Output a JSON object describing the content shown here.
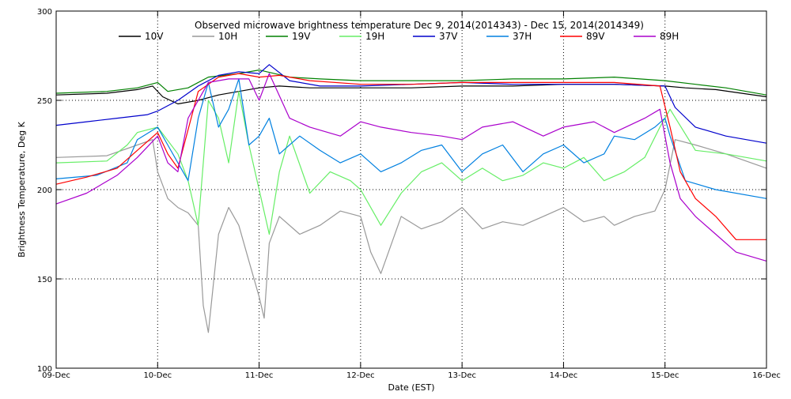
{
  "chart_data": {
    "type": "line",
    "title": "Observed microwave brightness temperature Dec  9, 2014(2014343) - Dec 15, 2014(2014349)",
    "xlabel": "Date (EST)",
    "ylabel": "Brightness Temperature, Deg K",
    "x_unit": "days since 09-Dec-2014 00:00 EST",
    "xlim": [
      0,
      7
    ],
    "ylim": [
      100,
      300
    ],
    "y_ticks": [
      100,
      150,
      200,
      250,
      300
    ],
    "x_ticks": [
      {
        "x": 0,
        "label": "09-Dec"
      },
      {
        "x": 1,
        "label": "10-Dec"
      },
      {
        "x": 2,
        "label": "11-Dec"
      },
      {
        "x": 3,
        "label": "12-Dec"
      },
      {
        "x": 4,
        "label": "13-Dec"
      },
      {
        "x": 5,
        "label": "14-Dec"
      },
      {
        "x": 6,
        "label": "15-Dec"
      },
      {
        "x": 7,
        "label": "16-Dec"
      }
    ],
    "grid": true,
    "legend_position": "top",
    "series": [
      {
        "name": "10V",
        "color": "#000000",
        "x": [
          0,
          0.5,
          0.8,
          0.95,
          1.05,
          1.2,
          1.4,
          1.6,
          1.8,
          2.0,
          2.2,
          2.5,
          3.0,
          3.5,
          4.0,
          4.5,
          5.0,
          5.5,
          6.0,
          6.2,
          6.5,
          7.0
        ],
        "y": [
          253,
          254,
          256,
          258,
          252,
          248,
          250,
          253,
          255,
          257,
          258,
          257,
          257,
          257,
          258,
          258,
          259,
          259,
          258,
          257,
          256,
          252
        ]
      },
      {
        "name": "10H",
        "color": "#999999",
        "x": [
          0,
          0.5,
          0.8,
          0.95,
          1.0,
          1.1,
          1.2,
          1.3,
          1.4,
          1.45,
          1.5,
          1.6,
          1.7,
          1.8,
          1.9,
          2.0,
          2.05,
          2.1,
          2.2,
          2.4,
          2.6,
          2.8,
          3.0,
          3.1,
          3.2,
          3.4,
          3.6,
          3.8,
          4.0,
          4.2,
          4.4,
          4.6,
          4.8,
          5.0,
          5.2,
          5.4,
          5.5,
          5.7,
          5.9,
          6.0,
          6.1,
          6.3,
          6.6,
          7.0
        ],
        "y": [
          218,
          219,
          225,
          228,
          210,
          195,
          190,
          187,
          180,
          135,
          120,
          175,
          190,
          180,
          160,
          140,
          128,
          170,
          185,
          175,
          180,
          188,
          185,
          165,
          153,
          185,
          178,
          182,
          190,
          178,
          182,
          180,
          185,
          190,
          182,
          185,
          180,
          185,
          188,
          200,
          228,
          225,
          220,
          212
        ]
      },
      {
        "name": "19V",
        "color": "#008000",
        "x": [
          0,
          0.5,
          0.8,
          1.0,
          1.1,
          1.3,
          1.5,
          1.8,
          2.0,
          2.3,
          2.6,
          3.0,
          3.5,
          4.0,
          4.5,
          5.0,
          5.5,
          6.0,
          6.3,
          6.6,
          7.0
        ],
        "y": [
          254,
          255,
          257,
          260,
          255,
          257,
          263,
          265,
          267,
          263,
          262,
          261,
          261,
          261,
          262,
          262,
          263,
          261,
          259,
          257,
          253
        ]
      },
      {
        "name": "19H",
        "color": "#66ee66",
        "x": [
          0,
          0.5,
          0.7,
          0.8,
          1.0,
          1.2,
          1.3,
          1.4,
          1.5,
          1.6,
          1.7,
          1.8,
          1.9,
          2.0,
          2.1,
          2.2,
          2.3,
          2.5,
          2.7,
          2.9,
          3.0,
          3.2,
          3.4,
          3.6,
          3.8,
          4.0,
          4.2,
          4.4,
          4.6,
          4.8,
          5.0,
          5.2,
          5.4,
          5.6,
          5.8,
          5.95,
          6.05,
          6.3,
          6.6,
          7.0
        ],
        "y": [
          215,
          216,
          225,
          232,
          235,
          220,
          205,
          180,
          250,
          240,
          215,
          255,
          225,
          200,
          175,
          210,
          230,
          198,
          210,
          205,
          200,
          180,
          198,
          210,
          215,
          205,
          212,
          205,
          208,
          215,
          212,
          218,
          205,
          210,
          218,
          235,
          245,
          222,
          220,
          216
        ]
      },
      {
        "name": "37V",
        "color": "#0000cc",
        "x": [
          0,
          0.3,
          0.6,
          0.9,
          1.0,
          1.2,
          1.4,
          1.6,
          1.8,
          2.0,
          2.1,
          2.3,
          2.6,
          3.0,
          3.5,
          4.0,
          4.5,
          5.0,
          5.5,
          6.0,
          6.1,
          6.3,
          6.6,
          7.0
        ],
        "y": [
          236,
          238,
          240,
          242,
          244,
          250,
          258,
          264,
          266,
          265,
          270,
          261,
          258,
          258,
          259,
          260,
          259,
          259,
          259,
          258,
          246,
          235,
          230,
          226
        ]
      },
      {
        "name": "37H",
        "color": "#0080e0",
        "x": [
          0,
          0.4,
          0.7,
          0.8,
          1.0,
          1.1,
          1.2,
          1.3,
          1.4,
          1.5,
          1.6,
          1.7,
          1.8,
          1.9,
          2.0,
          2.1,
          2.2,
          2.4,
          2.6,
          2.8,
          3.0,
          3.2,
          3.4,
          3.6,
          3.8,
          4.0,
          4.2,
          4.4,
          4.6,
          4.8,
          5.0,
          5.2,
          5.4,
          5.5,
          5.7,
          5.9,
          6.0,
          6.05,
          6.2,
          6.5,
          7.0
        ],
        "y": [
          206,
          208,
          215,
          228,
          235,
          225,
          215,
          205,
          240,
          260,
          235,
          245,
          262,
          225,
          230,
          240,
          220,
          230,
          222,
          215,
          220,
          210,
          215,
          222,
          225,
          210,
          220,
          225,
          210,
          220,
          225,
          215,
          220,
          230,
          228,
          235,
          240,
          230,
          205,
          200,
          195
        ]
      },
      {
        "name": "89V",
        "color": "#ff0000",
        "x": [
          0,
          0.3,
          0.6,
          0.8,
          1.0,
          1.1,
          1.2,
          1.4,
          1.6,
          1.8,
          2.0,
          2.2,
          2.5,
          3.0,
          3.5,
          4.0,
          4.5,
          5.0,
          5.5,
          5.95,
          6.05,
          6.15,
          6.3,
          6.5,
          6.7,
          7.0
        ],
        "y": [
          203,
          207,
          212,
          222,
          232,
          220,
          212,
          255,
          263,
          265,
          263,
          264,
          261,
          259,
          259,
          260,
          260,
          260,
          260,
          258,
          235,
          210,
          195,
          185,
          172,
          172
        ]
      },
      {
        "name": "89H",
        "color": "#aa00cc",
        "x": [
          0,
          0.3,
          0.6,
          0.8,
          1.0,
          1.1,
          1.2,
          1.3,
          1.5,
          1.7,
          1.9,
          2.0,
          2.1,
          2.3,
          2.5,
          2.8,
          3.0,
          3.2,
          3.5,
          3.8,
          4.0,
          4.2,
          4.5,
          4.8,
          5.0,
          5.3,
          5.5,
          5.8,
          5.95,
          6.05,
          6.15,
          6.3,
          6.5,
          6.7,
          7.0
        ],
        "y": [
          192,
          198,
          208,
          218,
          230,
          215,
          210,
          240,
          260,
          262,
          262,
          250,
          265,
          240,
          235,
          230,
          238,
          235,
          232,
          230,
          228,
          235,
          238,
          230,
          235,
          238,
          232,
          240,
          245,
          215,
          195,
          185,
          175,
          165,
          160
        ]
      }
    ]
  }
}
